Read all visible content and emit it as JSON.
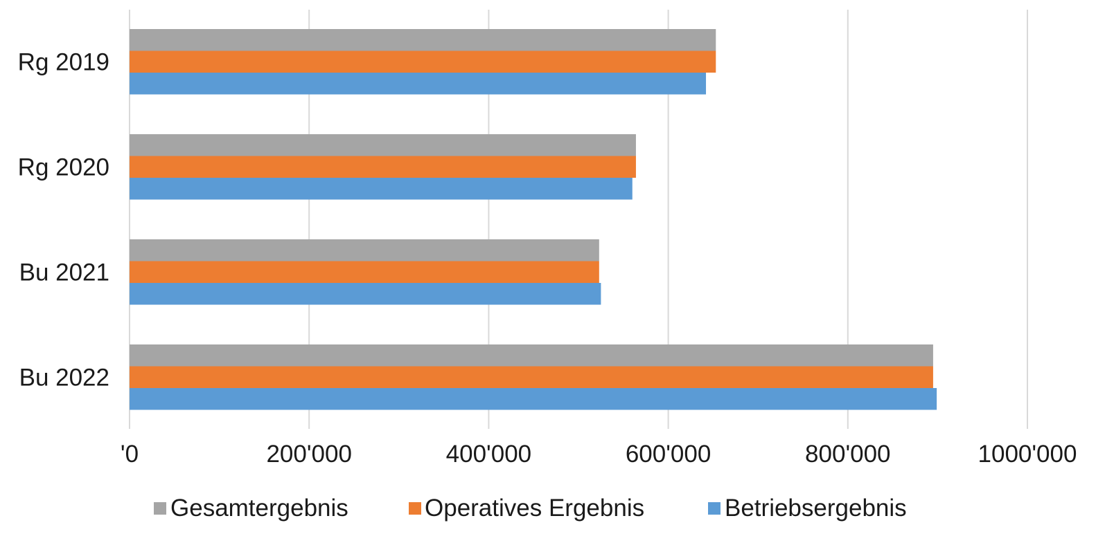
{
  "chart_data": {
    "type": "bar",
    "orientation": "horizontal",
    "categories": [
      "Rg 2019",
      "Rg 2020",
      "Bu 2021",
      "Bu 2022"
    ],
    "series": [
      {
        "name": "Gesamtergebnis",
        "color": "#a5a5a5",
        "values": [
          653000,
          564000,
          523000,
          895000
        ]
      },
      {
        "name": "Operatives Ergebnis",
        "color": "#ed7d31",
        "values": [
          653000,
          564000,
          523000,
          895000
        ]
      },
      {
        "name": "Betriebsergebnis",
        "color": "#5b9bd5",
        "values": [
          642000,
          560000,
          525000,
          899000
        ]
      }
    ],
    "xlim": [
      0,
      1000000
    ],
    "xticks": [
      {
        "value": 0,
        "label": "'0"
      },
      {
        "value": 200000,
        "label": "200'000"
      },
      {
        "value": 400000,
        "label": "400'000"
      },
      {
        "value": 600000,
        "label": "600'000"
      },
      {
        "value": 800000,
        "label": "800'000"
      },
      {
        "value": 1000000,
        "label": "1000'000"
      }
    ],
    "grid": true,
    "legend_position": "bottom",
    "legend_order": [
      0,
      1,
      2
    ]
  }
}
